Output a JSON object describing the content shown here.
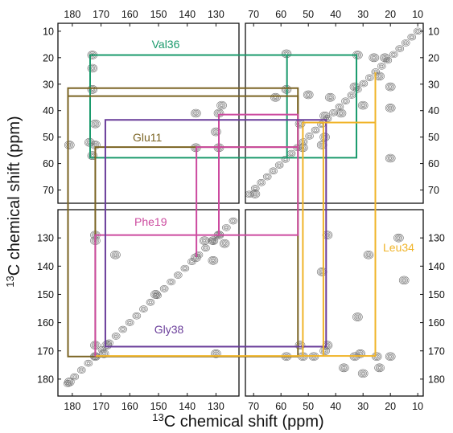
{
  "chart_data": {
    "type": "contour",
    "xlabel_sup": "13",
    "xlabel": "C chemical shift (ppm)",
    "ylabel_sup": "13",
    "ylabel": "C chemical shift (ppm)",
    "panels": [
      {
        "id": "top-left",
        "xlim": [
          185,
          122
        ],
        "ylim": [
          7,
          75
        ]
      },
      {
        "id": "top-right",
        "xlim": [
          73,
          8
        ],
        "ylim": [
          7,
          75
        ]
      },
      {
        "id": "bottom-left",
        "xlim": [
          185,
          122
        ],
        "ylim": [
          120,
          186
        ]
      },
      {
        "id": "bottom-right",
        "xlim": [
          73,
          8
        ],
        "ylim": [
          120,
          186
        ]
      }
    ],
    "x_ticks_left": [
      "180",
      "170",
      "160",
      "150",
      "140",
      "130"
    ],
    "x_ticks_right": [
      "70",
      "60",
      "50",
      "40",
      "30",
      "20",
      "10"
    ],
    "y_ticks_top": [
      "10",
      "20",
      "30",
      "40",
      "50",
      "60",
      "70"
    ],
    "y_ticks_bottom": [
      "130",
      "140",
      "150",
      "160",
      "170",
      "180"
    ],
    "assignments": [
      {
        "name": "Val36",
        "color": "#1a9a6c",
        "shifts": [
          173.8,
          57.8,
          32.4,
          19.0
        ]
      },
      {
        "name": "Glu11",
        "color": "#7a6322",
        "shifts": [
          181.5,
          172.0,
          53.8,
          34.5,
          31.5
        ]
      },
      {
        "name": "Phe19",
        "color": "#cc4a9f",
        "shifts": [
          136.8,
          129.0,
          53.8,
          41.5
        ]
      },
      {
        "name": "Gly38",
        "color": "#6a3d9a",
        "shifts": [
          168.5,
          43.5
        ]
      },
      {
        "name": "Leu34",
        "color": "#f0b429",
        "shifts": [
          171.8,
          52.0,
          44.5,
          25.5
        ]
      }
    ],
    "grid": false,
    "legend": "none"
  }
}
